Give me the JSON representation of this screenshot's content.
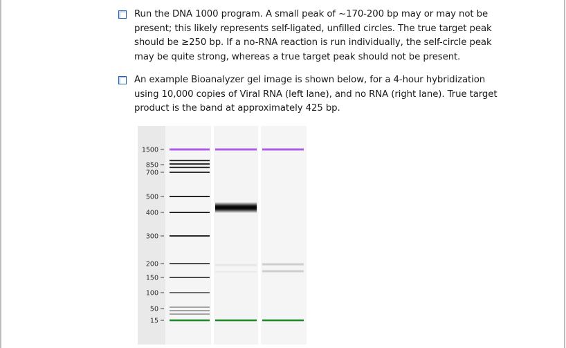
{
  "bullets": [
    {
      "lines": [
        "Run the DNA 1000 program. A small peak of ~170-200 bp may or may not be",
        "present; this likely represents self-ligated, unfilled circles. The true target peak",
        "should be ≥250 bp. If a no-RNA reaction is run individually, the self-circle peak",
        "may be quite strong, whereas a true target peak should not be present."
      ]
    },
    {
      "lines": [
        "An example Bioanalyzer gel image is shown below, for a 4-hour hybridization",
        "using 10,000 copies of Viral RNA (left lane), and no RNA (right lane). True target",
        "product is the band at approximately 425 bp."
      ]
    }
  ],
  "gel": {
    "ladder_labels": [
      "1500",
      "850",
      "700",
      "500",
      "400",
      "300",
      "200",
      "150",
      "100",
      "50",
      "15"
    ],
    "upper_marker_color": "#a64de0",
    "lower_marker_color": "#1f8a2e"
  }
}
